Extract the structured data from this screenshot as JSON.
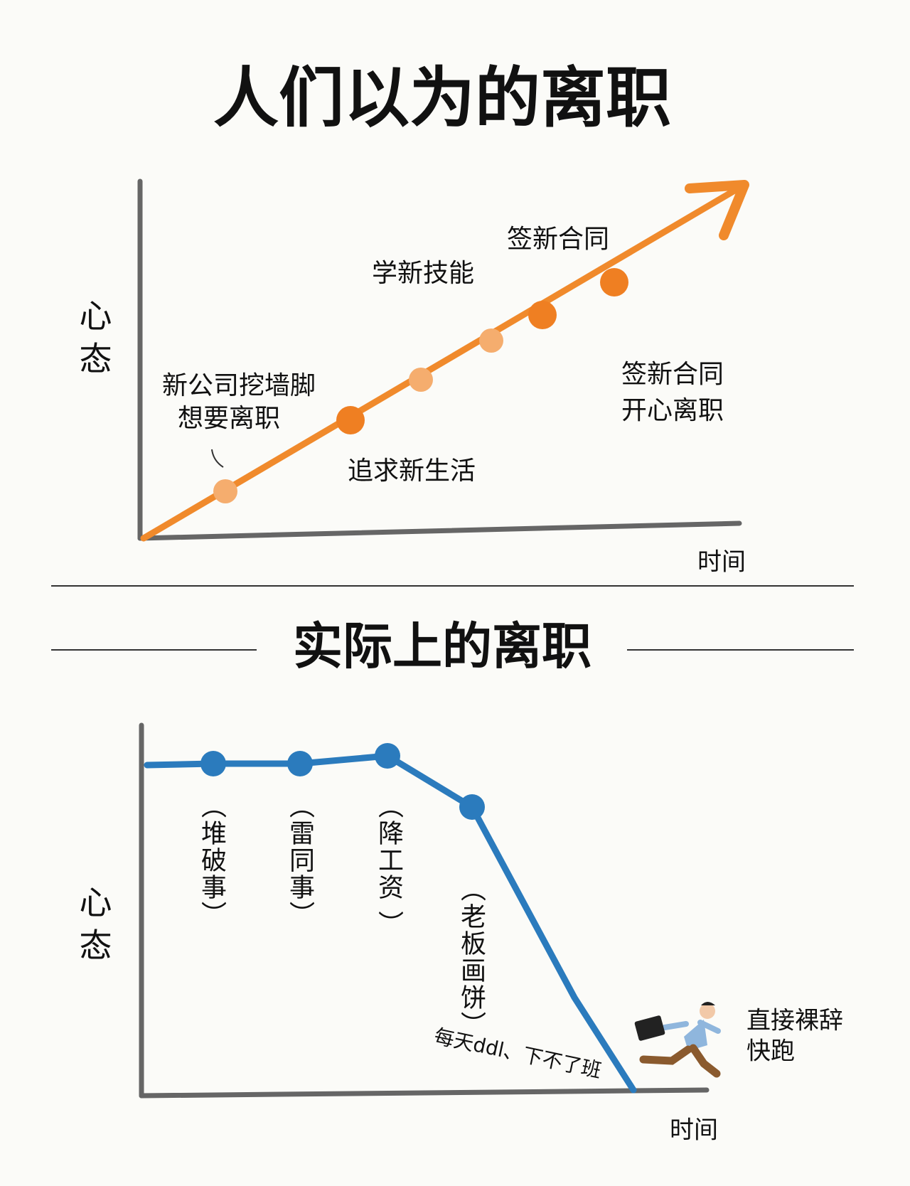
{
  "top": {
    "title": "人们以为的离职",
    "y_label": "心态",
    "x_label": "时间",
    "annotations": [
      "签新合同",
      "学新技能",
      "新公司挖墙脚",
      "想要离职",
      "追求新生活",
      "签新合同",
      "开心离职"
    ]
  },
  "bottom": {
    "title": "实际上的离职",
    "y_label": "心态",
    "x_label": "时间",
    "annotations": [
      "（堆破事）",
      "（雷同事）",
      "（降工资 ）",
      "（老板画饼）",
      "每天ddl、下不了班",
      "直接裸辞",
      "快跑"
    ]
  }
}
